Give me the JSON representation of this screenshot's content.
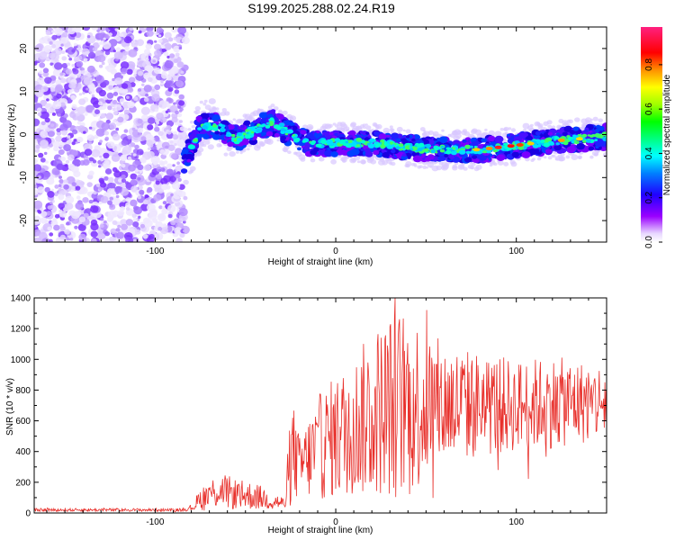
{
  "title": "S199.2025.288.02.24.R19",
  "chart_data": [
    {
      "type": "heatmap",
      "name": "spectrogram",
      "xlabel": "Height of straight line (km)",
      "ylabel": "Frequency (Hz)",
      "xlim": [
        -167,
        150
      ],
      "ylim": [
        -25,
        25
      ],
      "xticks": [
        -100,
        0,
        100
      ],
      "yticks": [
        -20,
        -10,
        0,
        10,
        20
      ],
      "colorbar": {
        "label": "Normalized spectral amplitude",
        "range": [
          0,
          0.97
        ],
        "ticks": [
          "0.0",
          "0.2",
          "0.4",
          "0.6",
          "0.8"
        ],
        "tick_values": [
          0,
          0.2,
          0.4,
          0.6,
          0.8
        ]
      },
      "ridge": {
        "description_points_km": [
          -83,
          -75,
          -65,
          -55,
          -45,
          -35,
          -25,
          -15,
          0,
          20,
          40,
          60,
          80,
          100,
          120,
          150
        ],
        "frequency_hz": [
          -6,
          2,
          2,
          -1,
          1,
          3,
          0,
          -2,
          -2,
          -2,
          -3,
          -3.5,
          -3.5,
          -2.5,
          -1.5,
          -0.5
        ]
      },
      "noise_region_km": [
        -167,
        -83
      ]
    },
    {
      "type": "line",
      "name": "snr",
      "xlabel": "Height of straight line (km)",
      "ylabel": "SNR (10 * v/v)",
      "xlim": [
        -167,
        150
      ],
      "ylim": [
        0,
        1400
      ],
      "xticks": [
        -100,
        0,
        100
      ],
      "yticks": [
        0,
        200,
        400,
        600,
        800,
        1000,
        1200,
        1400
      ],
      "series": [
        {
          "name": "SNR",
          "color": "#e8302b",
          "envelope_x": [
            -167,
            -85,
            -80,
            -75,
            -65,
            -55,
            -45,
            -35,
            -28,
            -24,
            -20,
            -10,
            0,
            10,
            20,
            30,
            40,
            50,
            60,
            80,
            100,
            120,
            150
          ],
          "envelope_mean": [
            20,
            20,
            30,
            90,
            150,
            120,
            110,
            80,
            60,
            400,
            300,
            420,
            500,
            560,
            650,
            700,
            720,
            700,
            710,
            700,
            700,
            720,
            720
          ],
          "envelope_amp": [
            10,
            10,
            15,
            80,
            120,
            100,
            90,
            60,
            40,
            350,
            200,
            350,
            400,
            450,
            550,
            600,
            650,
            500,
            400,
            350,
            300,
            300,
            250
          ]
        }
      ]
    }
  ]
}
